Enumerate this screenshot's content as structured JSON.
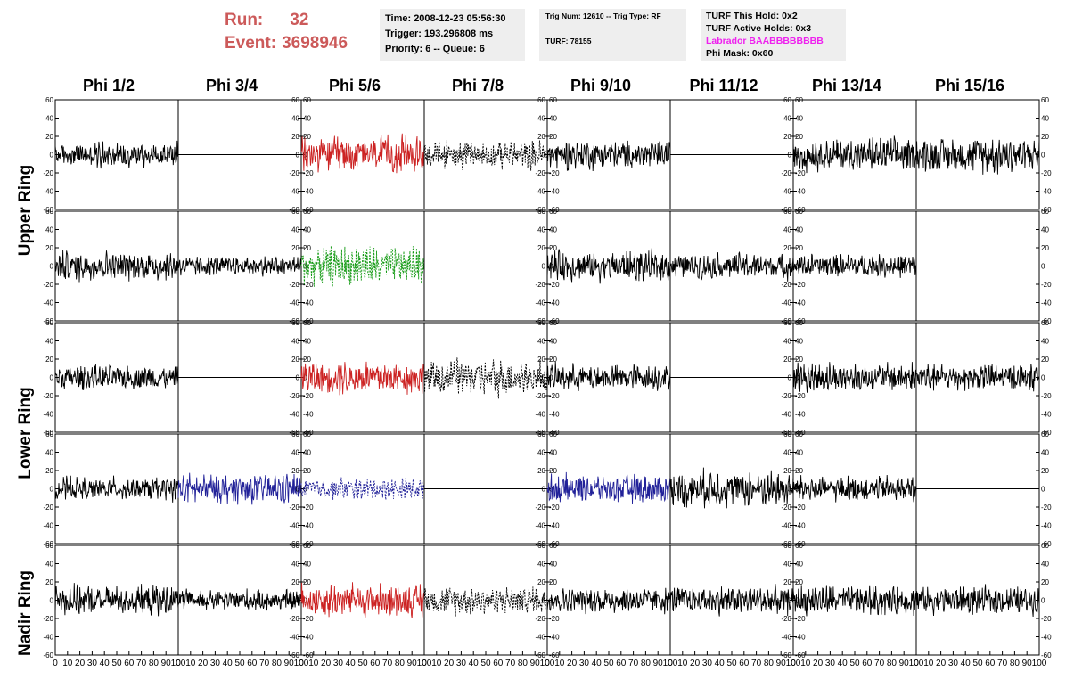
{
  "run_label": "Run:",
  "run_value": "32",
  "event_label": "Event:",
  "event_value": "3698946",
  "info": {
    "time": "Time: 2008-12-23 05:56:30",
    "trigger": "Trigger: 193.296808 ms",
    "priority": "Priority: 6 -- Queue: 6",
    "trig_num": "Trig Num: 12610 -- Trig Type: RF",
    "turf": "TURF: 78155",
    "turf_this_hold": "TURF This Hold: 0x2",
    "turf_active_holds": "TURF Active Holds: 0x3",
    "labrador": "Labrador BAABBBBBBBB",
    "phi_mask": "Phi Mask: 0x60"
  },
  "colors": {
    "red": "#cc5a5a",
    "magenta": "#ee22ee",
    "trace_black": "#000000",
    "trace_red": "#cc2222",
    "trace_green": "#119911",
    "trace_blue": "#222299",
    "box_bg": "#eeeeee"
  },
  "phi_columns": [
    "Phi 1/2",
    "Phi 3/4",
    "Phi 5/6",
    "Phi 7/8",
    "Phi 9/10",
    "Phi 11/12",
    "Phi 13/14",
    "Phi 15/16"
  ],
  "ring_labels": [
    "Upper Ring",
    "Lower Ring",
    "Nadir Ring"
  ],
  "chart_data": {
    "type": "line",
    "grid": false,
    "xlim": [
      0,
      100
    ],
    "ylim": [
      -60,
      60
    ],
    "x_ticks": [
      0,
      10,
      20,
      30,
      40,
      50,
      60,
      70,
      80,
      90,
      100
    ],
    "y_ticks": [
      -60,
      -40,
      -20,
      0,
      20,
      40,
      60
    ],
    "panel_rows": 5,
    "panel_cols": 8,
    "panels": [
      [
        {
          "style": "solid",
          "color": "black",
          "amp": 12
        },
        {
          "style": "flat",
          "color": "black",
          "amp": 0
        },
        {
          "style": "solid",
          "color": "red",
          "amp": 17
        },
        {
          "style": "dashed",
          "color": "black",
          "amp": 13
        },
        {
          "style": "solid",
          "color": "black",
          "amp": 14
        },
        {
          "style": "flat",
          "color": "black",
          "amp": 0
        },
        {
          "style": "solid",
          "color": "black",
          "amp": 15
        },
        {
          "style": "solid",
          "color": "black",
          "amp": 17
        }
      ],
      [
        {
          "style": "solid",
          "color": "black",
          "amp": 14
        },
        {
          "style": "solid",
          "color": "black",
          "amp": 9
        },
        {
          "style": "dashed",
          "color": "green",
          "amp": 18
        },
        {
          "style": "flat",
          "color": "black",
          "amp": 0
        },
        {
          "style": "solid",
          "color": "black",
          "amp": 14
        },
        {
          "style": "solid",
          "color": "black",
          "amp": 12
        },
        {
          "style": "solid",
          "color": "black",
          "amp": 11
        },
        {
          "style": "flat",
          "color": "black",
          "amp": 0
        }
      ],
      [
        {
          "style": "solid",
          "color": "black",
          "amp": 11
        },
        {
          "style": "flat",
          "color": "black",
          "amp": 0
        },
        {
          "style": "solid",
          "color": "red",
          "amp": 16
        },
        {
          "style": "dashed",
          "color": "black",
          "amp": 17
        },
        {
          "style": "solid",
          "color": "black",
          "amp": 12
        },
        {
          "style": "flat",
          "color": "black",
          "amp": 0
        },
        {
          "style": "solid",
          "color": "black",
          "amp": 14
        },
        {
          "style": "solid",
          "color": "black",
          "amp": 13
        }
      ],
      [
        {
          "style": "solid",
          "color": "black",
          "amp": 11
        },
        {
          "style": "solid",
          "color": "blue",
          "amp": 14
        },
        {
          "style": "dashed",
          "color": "blue",
          "amp": 10
        },
        {
          "style": "flat",
          "color": "black",
          "amp": 0
        },
        {
          "style": "solid",
          "color": "blue",
          "amp": 13
        },
        {
          "style": "solid",
          "color": "black",
          "amp": 17
        },
        {
          "style": "solid",
          "color": "black",
          "amp": 12
        },
        {
          "style": "flat",
          "color": "black",
          "amp": 0
        }
      ],
      [
        {
          "style": "solid",
          "color": "black",
          "amp": 14
        },
        {
          "style": "solid",
          "color": "black",
          "amp": 10
        },
        {
          "style": "solid",
          "color": "red",
          "amp": 16
        },
        {
          "style": "dashed",
          "color": "black",
          "amp": 13
        },
        {
          "style": "solid",
          "color": "black",
          "amp": 12
        },
        {
          "style": "solid",
          "color": "black",
          "amp": 13
        },
        {
          "style": "solid",
          "color": "black",
          "amp": 14
        },
        {
          "style": "solid",
          "color": "black",
          "amp": 13
        }
      ]
    ]
  }
}
